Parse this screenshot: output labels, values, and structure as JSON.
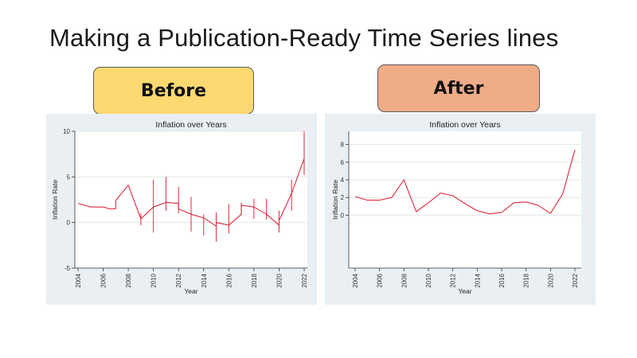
{
  "slide": {
    "title": "Making a Publication-Ready Time Series lines",
    "before_label": "Before",
    "after_label": "After"
  },
  "colors": {
    "panel_bg": "#e9eff3",
    "line": "#e0283c",
    "before_label_bg": "#fbd970",
    "after_label_bg": "#f0ab87"
  },
  "chart_data": [
    {
      "type": "line",
      "title": "Inflation over Years",
      "xlabel": "Year",
      "ylabel": "Inflation Rate",
      "xlim": [
        2004,
        2022
      ],
      "ylim": [
        -5,
        10
      ],
      "yticks": [
        -5,
        0,
        5,
        10
      ],
      "xticks": [
        2004,
        2006,
        2008,
        2010,
        2012,
        2014,
        2016,
        2018,
        2020,
        2022
      ],
      "grid": true,
      "error_bars": true,
      "series": [
        {
          "points": [
            {
              "x": 2004,
              "y": 2.1
            },
            {
              "x": 2005,
              "y": 1.7
            },
            {
              "x": 2006,
              "y": 1.7
            },
            {
              "x": 2006.5,
              "y": 1.5
            },
            {
              "x": 2007,
              "y": 1.5
            },
            {
              "x": 2007,
              "y": 2.4
            },
            {
              "x": 2008,
              "y": 4.1
            },
            {
              "x": 2009,
              "y": 0.4
            },
            {
              "x": 2010,
              "y": 1.7
            },
            {
              "x": 2011,
              "y": 2.2
            },
            {
              "x": 2012,
              "y": 2.1
            },
            {
              "x": 2012,
              "y": 1.5
            },
            {
              "x": 2013,
              "y": 0.9
            },
            {
              "x": 2014,
              "y": 0.5
            },
            {
              "x": 2015,
              "y": -0.4
            },
            {
              "x": 2015,
              "y": 0.0
            },
            {
              "x": 2016,
              "y": -0.3
            },
            {
              "x": 2017,
              "y": 0.9
            },
            {
              "x": 2017,
              "y": 1.9
            },
            {
              "x": 2018,
              "y": 1.7
            },
            {
              "x": 2019,
              "y": 0.9
            },
            {
              "x": 2020,
              "y": -0.3
            },
            {
              "x": 2020,
              "y": 0.2
            },
            {
              "x": 2021,
              "y": 3.2
            },
            {
              "x": 2022,
              "y": 7.0
            }
          ],
          "error_bars": [
            {
              "x": 2009,
              "low": -0.3,
              "high": 1.0
            },
            {
              "x": 2010,
              "low": -1.1,
              "high": 4.7
            },
            {
              "x": 2011,
              "low": 1.3,
              "high": 5.0
            },
            {
              "x": 2012,
              "low": 1.0,
              "high": 3.9
            },
            {
              "x": 2013,
              "low": -1.0,
              "high": 2.8
            },
            {
              "x": 2014,
              "low": -1.4,
              "high": 0.9
            },
            {
              "x": 2015,
              "low": -2.1,
              "high": 1.1
            },
            {
              "x": 2016,
              "low": -1.2,
              "high": 2.0
            },
            {
              "x": 2017,
              "low": 0.8,
              "high": 2.2
            },
            {
              "x": 2018,
              "low": 0.4,
              "high": 2.6
            },
            {
              "x": 2019,
              "low": 0.3,
              "high": 2.6
            },
            {
              "x": 2020,
              "low": -1.1,
              "high": 1.3
            },
            {
              "x": 2021,
              "low": 1.3,
              "high": 4.7
            },
            {
              "x": 2022,
              "low": 5.2,
              "high": 10.0
            }
          ]
        }
      ]
    },
    {
      "type": "line",
      "title": "Inflation over Years",
      "xlabel": "Year",
      "ylabel": "Inflation Rate",
      "xlim": [
        2004,
        2022
      ],
      "ylim": [
        -6,
        9.5
      ],
      "yticks": [
        0,
        2,
        4,
        6,
        8
      ],
      "xticks": [
        2004,
        2006,
        2008,
        2010,
        2012,
        2014,
        2016,
        2018,
        2020,
        2022
      ],
      "grid": true,
      "error_bars": false,
      "series": [
        {
          "points": [
            {
              "x": 2004,
              "y": 2.1
            },
            {
              "x": 2005,
              "y": 1.7
            },
            {
              "x": 2006,
              "y": 1.7
            },
            {
              "x": 2007,
              "y": 2.0
            },
            {
              "x": 2008,
              "y": 4.0
            },
            {
              "x": 2009,
              "y": 0.4
            },
            {
              "x": 2010,
              "y": 1.4
            },
            {
              "x": 2011,
              "y": 2.5
            },
            {
              "x": 2012,
              "y": 2.2
            },
            {
              "x": 2013,
              "y": 1.3
            },
            {
              "x": 2014,
              "y": 0.5
            },
            {
              "x": 2015,
              "y": 0.15
            },
            {
              "x": 2016,
              "y": 0.3
            },
            {
              "x": 2017,
              "y": 1.4
            },
            {
              "x": 2018,
              "y": 1.5
            },
            {
              "x": 2019,
              "y": 1.1
            },
            {
              "x": 2020,
              "y": 0.2
            },
            {
              "x": 2021,
              "y": 2.4
            },
            {
              "x": 2022,
              "y": 7.4
            }
          ]
        }
      ]
    }
  ]
}
